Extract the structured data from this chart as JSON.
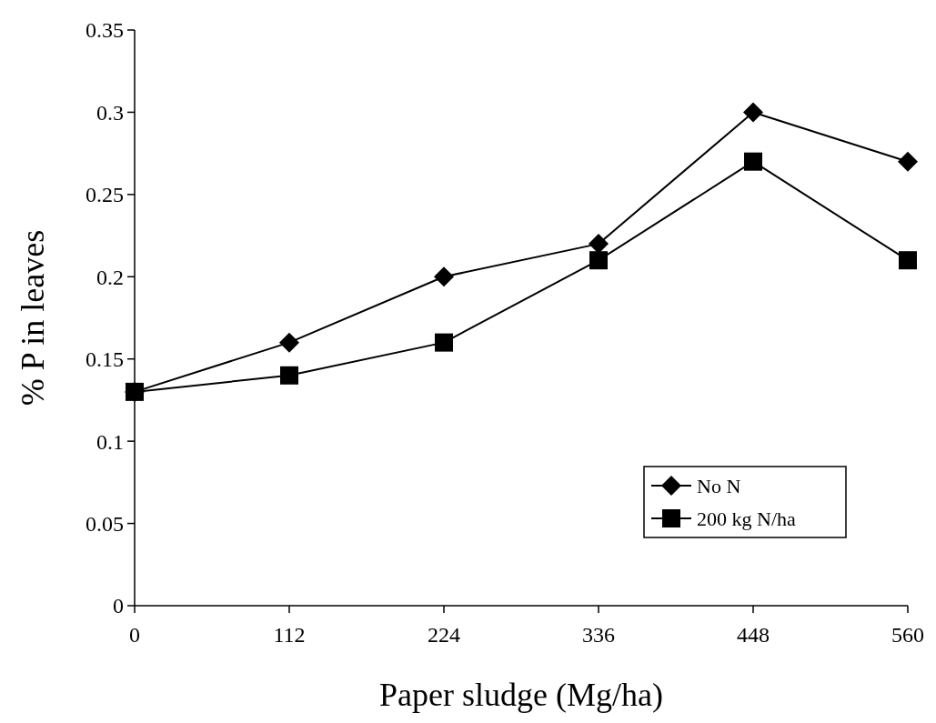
{
  "chart_data": {
    "type": "line",
    "xlabel": "Paper sludge (Mg/ha)",
    "ylabel": "% P in leaves",
    "x": [
      0,
      112,
      224,
      336,
      448,
      560
    ],
    "series": [
      {
        "name": "No N",
        "color": "#000000",
        "marker": "diamond",
        "values": [
          0.13,
          0.16,
          0.2,
          0.22,
          0.3,
          0.27
        ]
      },
      {
        "name": "200 kg N/ha",
        "color": "#000000",
        "marker": "square",
        "values": [
          0.13,
          0.14,
          0.16,
          0.21,
          0.27,
          0.21
        ]
      }
    ],
    "xlim": [
      0,
      560
    ],
    "xticks": [
      0,
      112,
      224,
      336,
      448,
      560
    ],
    "ylim": [
      0,
      0.35
    ],
    "yticks": [
      0,
      0.05,
      0.1,
      0.15,
      0.2,
      0.25,
      0.3,
      0.35
    ],
    "grid": false,
    "legend": "right",
    "line_style": "solid"
  }
}
